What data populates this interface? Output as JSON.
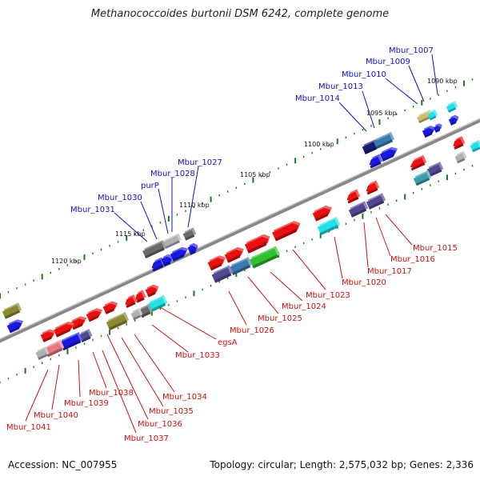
{
  "title": "Methanococcoides burtonii DSM 6242, complete genome",
  "footer": {
    "accession": "Accession: NC_007955",
    "summary": "Topology: circular; Length: 2,575,032 bp; Genes: 2,336"
  },
  "kbp_labels": [
    "1090 kbp",
    "1095 kbp",
    "1100 kbp",
    "1105 kbp",
    "1110 kbp",
    "1115 kbp",
    "1120 kbp"
  ],
  "top_labels": [
    "Mbur_1007",
    "Mbur_1009",
    "Mbur_1010",
    "Mbur_1013",
    "Mbur_1014",
    "Mbur_1027",
    "Mbur_1028",
    "purP",
    "Mbur_1030",
    "Mbur_1031"
  ],
  "bottom_labels": [
    "Mbur_1015",
    "Mbur_1016",
    "Mbur_1017",
    "Mbur_1020",
    "Mbur_1023",
    "Mbur_1024",
    "Mbur_1025",
    "Mbur_1026",
    "egsA",
    "Mbur_1033",
    "Mbur_1034",
    "Mbur_1035",
    "Mbur_1036",
    "Mbur_1037",
    "Mbur_1038",
    "Mbur_1039",
    "Mbur_1040",
    "Mbur_1041"
  ],
  "colors": {
    "forward_gene": "#e81010",
    "reverse_gene": "#1010e0",
    "backbone": "#888888",
    "tick": "#1a7a1a",
    "top_label": "#1111cc",
    "bottom_label": "#cc1111"
  }
}
